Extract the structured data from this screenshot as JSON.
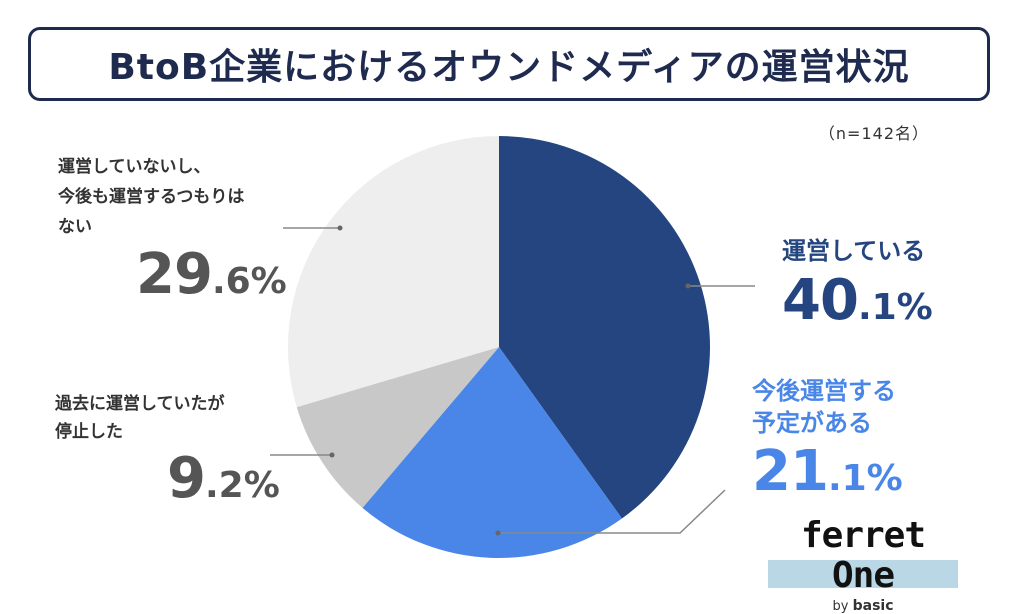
{
  "title": "BtoB企業におけるオウンドメディアの運営状況",
  "sample_note": "（n=142名）",
  "chart_data": {
    "type": "pie",
    "title": "BtoB企業におけるオウンドメディアの運営状況",
    "unit": "%",
    "slices": [
      {
        "label": "運営している",
        "value": 40.1,
        "int": "40",
        "dec": ".1",
        "color": "#24457f"
      },
      {
        "label": "今後運営する予定がある",
        "value": 21.1,
        "int": "21",
        "dec": ".1",
        "color": "#4a86e8"
      },
      {
        "label": "過去に運営していたが停止した",
        "value": 9.2,
        "int": "9",
        "dec": ".2",
        "color": "#c8c8c8"
      },
      {
        "label": "運営していないし、今後も運営するつもりはない",
        "value": 29.6,
        "int": "29",
        "dec": ".6",
        "color": "#eeeeee"
      }
    ]
  },
  "labels": {
    "operating": {
      "desc": "運営している",
      "int": "40",
      "dec": ".1",
      "pct": "%"
    },
    "planning": {
      "desc": "今後運営する\n予定がある",
      "int": "21",
      "dec": ".1",
      "pct": "%"
    },
    "stopped": {
      "desc": "過去に運営していたが\n停止した",
      "int": "9",
      "dec": ".2",
      "pct": "%"
    },
    "never": {
      "desc": "運営していないし、\n今後も運営するつもりは\nない",
      "int": "29",
      "dec": ".6",
      "pct": "%"
    }
  },
  "logo": {
    "name": "ferret One",
    "by": "by",
    "company": "basic"
  }
}
